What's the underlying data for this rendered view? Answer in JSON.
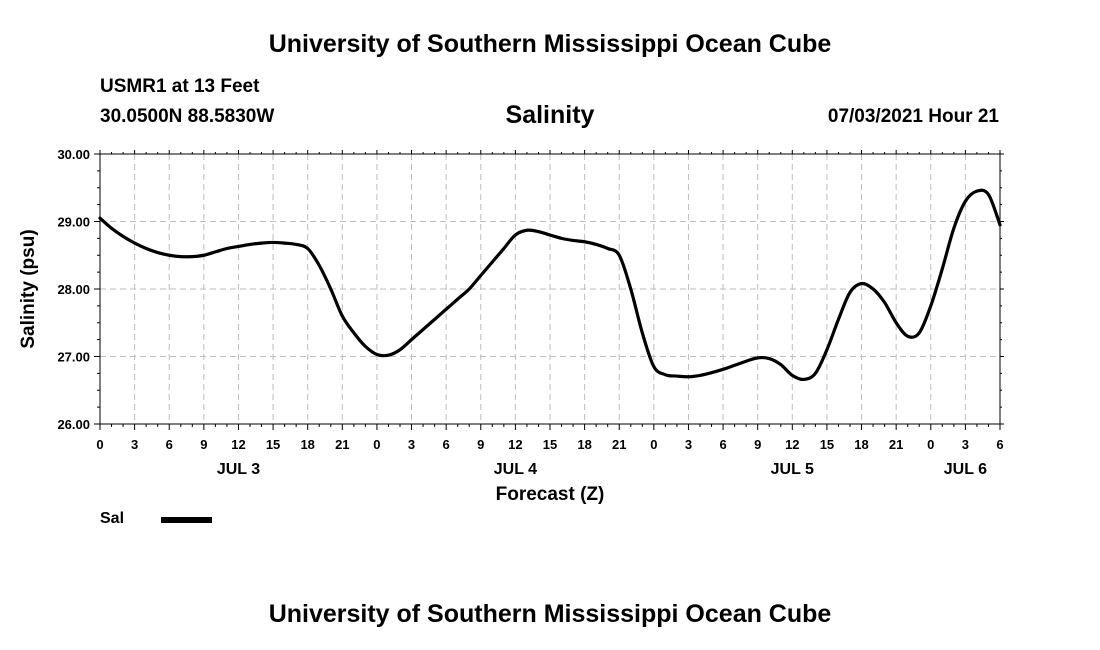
{
  "header": {
    "top_title": "University of Southern Mississippi Ocean Cube",
    "station": "USMR1 at 13 Feet",
    "coords": "30.0500N  88.5830W",
    "variable_title": "Salinity",
    "datetime": "07/03/2021 Hour 21"
  },
  "footer": {
    "bottom_title": "University of Southern Mississippi Ocean Cube"
  },
  "legend": {
    "label": "Sal"
  },
  "chart_data": {
    "type": "line",
    "title": "Salinity",
    "xlabel": "Forecast (Z)",
    "ylabel": "Salinity (psu)",
    "xlim": [
      0,
      78
    ],
    "ylim": [
      26,
      30
    ],
    "y_ticks": [
      "26.00",
      "27.00",
      "28.00",
      "29.00",
      "30.00"
    ],
    "x_tick_hours": [
      0,
      3,
      6,
      9,
      12,
      15,
      18,
      21,
      24,
      27,
      30,
      33,
      36,
      39,
      42,
      45,
      48,
      51,
      54,
      57,
      60,
      63,
      66,
      69,
      72,
      75,
      78
    ],
    "x_tick_labels": [
      "0",
      "3",
      "6",
      "9",
      "12",
      "15",
      "18",
      "21",
      "0",
      "3",
      "6",
      "9",
      "12",
      "15",
      "18",
      "21",
      "0",
      "3",
      "6",
      "9",
      "12",
      "15",
      "18",
      "21",
      "0",
      "3",
      "6"
    ],
    "day_labels": [
      {
        "hour": 12,
        "label": "JUL 3"
      },
      {
        "hour": 36,
        "label": "JUL 4"
      },
      {
        "hour": 60,
        "label": "JUL 5"
      },
      {
        "hour": 75,
        "label": "JUL 6"
      }
    ],
    "grid": true,
    "line_color": "#000000",
    "series": [
      {
        "name": "Sal",
        "x": [
          0,
          1,
          2,
          3,
          4,
          5,
          6,
          7,
          8,
          9,
          10,
          11,
          12,
          13,
          14,
          15,
          16,
          17,
          18,
          19,
          20,
          21,
          22,
          23,
          24,
          25,
          26,
          27,
          28,
          29,
          30,
          31,
          32,
          33,
          34,
          35,
          36,
          37,
          38,
          39,
          40,
          41,
          42,
          43,
          44,
          45,
          46,
          47,
          48,
          49,
          50,
          51,
          52,
          53,
          54,
          55,
          56,
          57,
          58,
          59,
          60,
          61,
          62,
          63,
          64,
          65,
          66,
          67,
          68,
          69,
          70,
          71,
          72,
          73,
          74,
          75,
          76,
          77,
          78
        ],
        "y": [
          29.05,
          28.9,
          28.78,
          28.68,
          28.6,
          28.54,
          28.5,
          28.48,
          28.48,
          28.5,
          28.55,
          28.6,
          28.63,
          28.66,
          28.68,
          28.69,
          28.68,
          28.66,
          28.6,
          28.35,
          28.0,
          27.6,
          27.35,
          27.15,
          27.03,
          27.02,
          27.1,
          27.25,
          27.4,
          27.55,
          27.7,
          27.85,
          28.0,
          28.2,
          28.4,
          28.6,
          28.8,
          28.87,
          28.85,
          28.8,
          28.75,
          28.72,
          28.7,
          28.66,
          28.6,
          28.5,
          28.0,
          27.35,
          26.85,
          26.73,
          26.71,
          26.7,
          26.72,
          26.76,
          26.81,
          26.87,
          26.93,
          26.98,
          26.97,
          26.88,
          26.72,
          26.66,
          26.75,
          27.1,
          27.55,
          27.95,
          28.08,
          28.0,
          27.8,
          27.5,
          27.3,
          27.35,
          27.75,
          28.3,
          28.9,
          29.3,
          29.45,
          29.4,
          28.95
        ]
      }
    ]
  }
}
